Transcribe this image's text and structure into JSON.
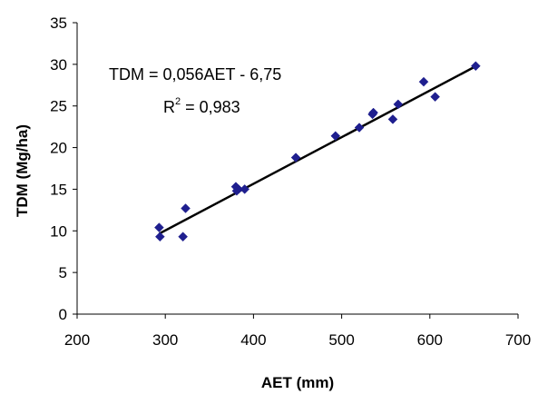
{
  "chart_data": {
    "type": "scatter",
    "xlabel": "AET (mm)",
    "ylabel": "TDM (Mg/ha)",
    "xlim": [
      200,
      700
    ],
    "ylim": [
      0,
      35
    ],
    "x_ticks": [
      "200",
      "300",
      "400",
      "500",
      "600",
      "700"
    ],
    "y_ticks": [
      "0",
      "5",
      "10",
      "15",
      "20",
      "25",
      "30",
      "35"
    ],
    "grid": false,
    "marker_color": "#1f1f8f",
    "series": [
      {
        "x": [
          293,
          294,
          320,
          323,
          380,
          381,
          383,
          390,
          448,
          493,
          520,
          535,
          536,
          558,
          564,
          593,
          606,
          652
        ],
        "y": [
          10.4,
          9.3,
          9.3,
          12.7,
          15.3,
          14.8,
          15.0,
          15.0,
          18.8,
          21.4,
          22.4,
          24.0,
          24.2,
          23.4,
          25.2,
          27.9,
          26.1,
          29.8
        ]
      }
    ],
    "trendline": {
      "slope": 0.056,
      "intercept": -6.75,
      "x_range": [
        293,
        652
      ]
    },
    "annotations": {
      "equation": "TDM = 0,056AET - 6,75",
      "r2_prefix": "R",
      "r2_sup": "2",
      "r2_suffix": " = 0,983"
    }
  }
}
